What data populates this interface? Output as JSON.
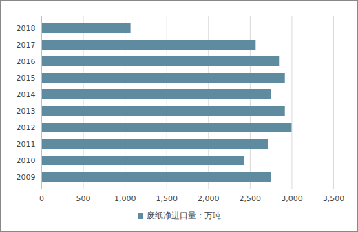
{
  "chart_data": {
    "type": "bar",
    "orientation": "horizontal",
    "categories": [
      "2018",
      "2017",
      "2016",
      "2015",
      "2014",
      "2013",
      "2012",
      "2011",
      "2010",
      "2009"
    ],
    "series": [
      {
        "name": "废纸净进口量：万吨",
        "color": "#5e8ba0",
        "values": [
          1070,
          2570,
          2850,
          2920,
          2750,
          2920,
          3000,
          2720,
          2430,
          2750
        ]
      }
    ],
    "xlim": [
      0,
      3500
    ],
    "xticks": [
      0,
      500,
      1000,
      1500,
      2000,
      2500,
      3000,
      3500
    ],
    "grid": true,
    "legend": "bottom"
  }
}
